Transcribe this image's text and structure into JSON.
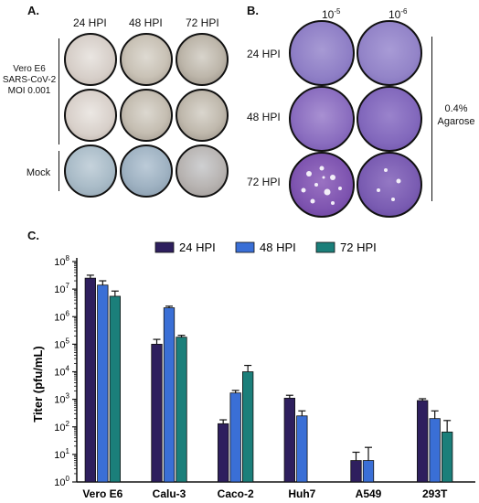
{
  "panel_a": {
    "label": "A.",
    "columns": [
      "24 HPI",
      "48 HPI",
      "72 HPI"
    ],
    "row_label_lines": [
      "Vero E6",
      "SARS-CoV-2",
      "MOI 0.001"
    ],
    "mock_label": "Mock"
  },
  "panel_b": {
    "label": "B.",
    "columns": [
      {
        "base": "10",
        "exp": "-5"
      },
      {
        "base": "10",
        "exp": "-6"
      }
    ],
    "rows": [
      "24 HPI",
      "48 HPI",
      "72 HPI"
    ],
    "side_label_lines": [
      "0.4%",
      "Agarose"
    ]
  },
  "panel_c": {
    "label": "C."
  },
  "colors": {
    "24 HPI": "#2e1f5e",
    "48 HPI": "#3a6fd6",
    "72 HPI": "#1b7f7a"
  },
  "chart_data": {
    "type": "bar",
    "ylabel": "Titer (pfu/mL)",
    "yscale": "log",
    "ylim": [
      1,
      100000000
    ],
    "yticks": [
      {
        "base": "10",
        "exp": "0"
      },
      {
        "base": "10",
        "exp": "1"
      },
      {
        "base": "10",
        "exp": "2"
      },
      {
        "base": "10",
        "exp": "3"
      },
      {
        "base": "10",
        "exp": "4"
      },
      {
        "base": "10",
        "exp": "5"
      },
      {
        "base": "10",
        "exp": "6"
      },
      {
        "base": "10",
        "exp": "7"
      },
      {
        "base": "10",
        "exp": "8"
      }
    ],
    "legend_position": "top",
    "categories": [
      "Vero E6",
      "Calu-3",
      "Caco-2",
      "Huh7",
      "A549",
      "293T"
    ],
    "series": [
      {
        "name": "24 HPI",
        "values": [
          25000000,
          100000,
          130,
          1100,
          6,
          900
        ],
        "errors": [
          32000000,
          150000,
          180,
          1400,
          12,
          1050
        ]
      },
      {
        "name": "48 HPI",
        "values": [
          14000000,
          2100000,
          1700,
          250,
          6,
          200
        ],
        "errors": [
          20000000,
          2400000,
          2100,
          380,
          18,
          380
        ]
      },
      {
        "name": "72 HPI",
        "values": [
          5500000,
          180000,
          10000,
          null,
          null,
          65
        ],
        "errors": [
          8500000,
          210000,
          17000,
          null,
          null,
          170
        ]
      }
    ]
  }
}
